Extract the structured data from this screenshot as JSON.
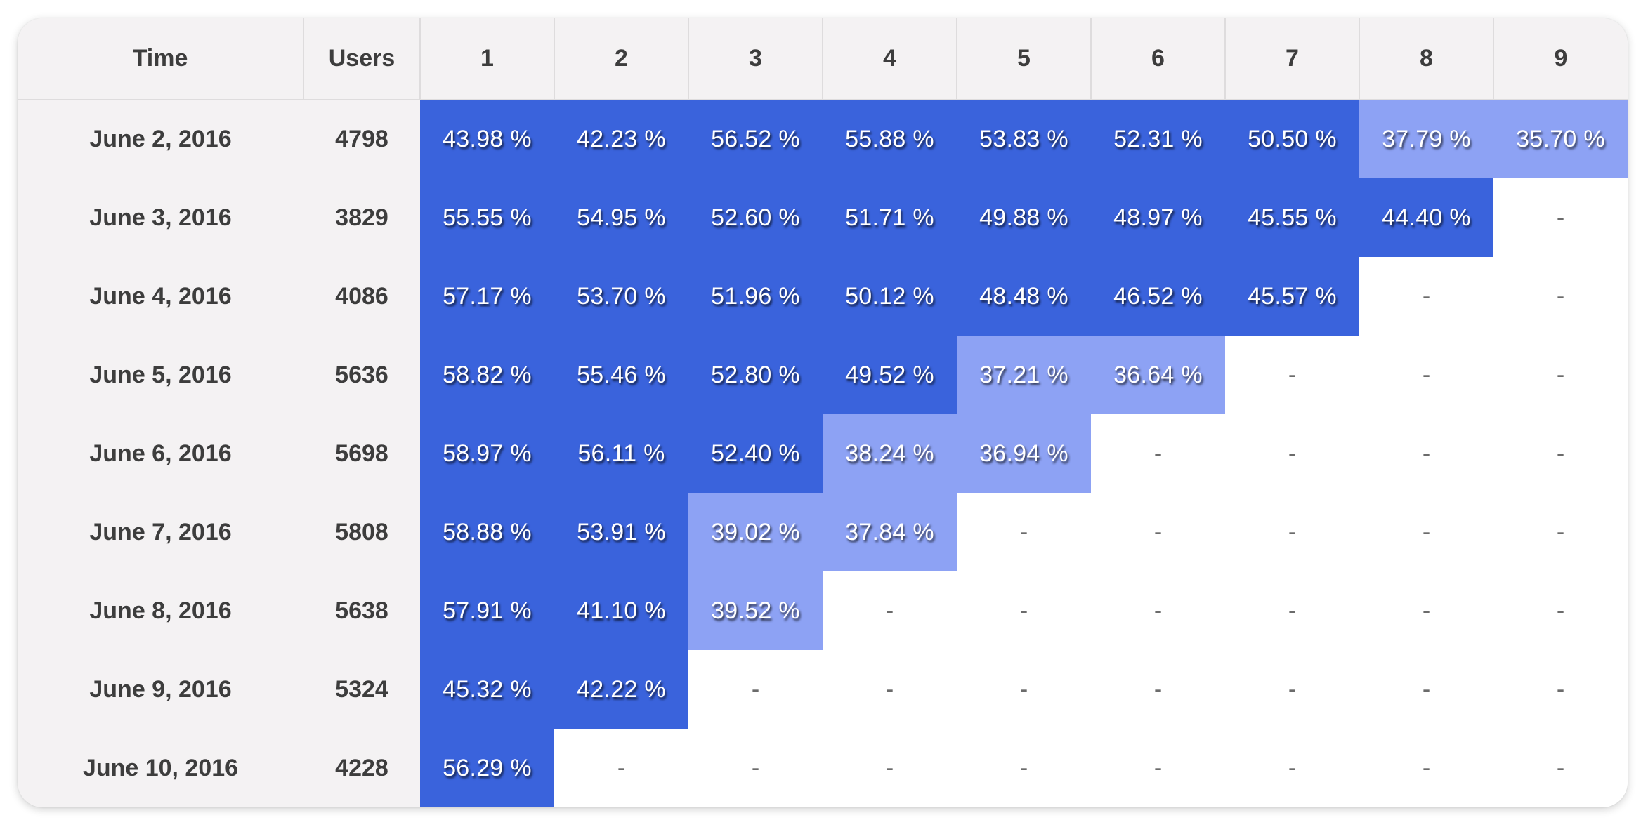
{
  "table": {
    "headers": {
      "time": "Time",
      "users": "Users",
      "periods": [
        "1",
        "2",
        "3",
        "4",
        "5",
        "6",
        "7",
        "8",
        "9"
      ]
    },
    "colors": {
      "high": "#3a63dc",
      "low": "#8da2f4",
      "header_bg": "#f4f2f3"
    },
    "empty_value": "-",
    "rows": [
      {
        "time": "June 2, 2016",
        "users": "4798",
        "values": [
          "43.98 %",
          "42.23 %",
          "56.52 %",
          "55.88 %",
          "53.83 %",
          "52.31 %",
          "50.50 %",
          "37.79 %",
          "35.70 %"
        ],
        "levels": [
          "high",
          "high",
          "high",
          "high",
          "high",
          "high",
          "high",
          "low",
          "low"
        ]
      },
      {
        "time": "June 3, 2016",
        "users": "3829",
        "values": [
          "55.55 %",
          "54.95 %",
          "52.60 %",
          "51.71 %",
          "49.88 %",
          "48.97 %",
          "45.55 %",
          "44.40 %"
        ],
        "levels": [
          "high",
          "high",
          "high",
          "high",
          "high",
          "high",
          "high",
          "high"
        ]
      },
      {
        "time": "June 4, 2016",
        "users": "4086",
        "values": [
          "57.17 %",
          "53.70 %",
          "51.96 %",
          "50.12 %",
          "48.48 %",
          "46.52 %",
          "45.57 %"
        ],
        "levels": [
          "high",
          "high",
          "high",
          "high",
          "high",
          "high",
          "high"
        ]
      },
      {
        "time": "June 5, 2016",
        "users": "5636",
        "values": [
          "58.82 %",
          "55.46 %",
          "52.80 %",
          "49.52 %",
          "37.21 %",
          "36.64 %"
        ],
        "levels": [
          "high",
          "high",
          "high",
          "high",
          "low",
          "low"
        ]
      },
      {
        "time": "June 6, 2016",
        "users": "5698",
        "values": [
          "58.97 %",
          "56.11 %",
          "52.40 %",
          "38.24 %",
          "36.94 %"
        ],
        "levels": [
          "high",
          "high",
          "high",
          "low",
          "low"
        ]
      },
      {
        "time": "June 7, 2016",
        "users": "5808",
        "values": [
          "58.88 %",
          "53.91 %",
          "39.02 %",
          "37.84 %"
        ],
        "levels": [
          "high",
          "high",
          "low",
          "low"
        ]
      },
      {
        "time": "June 8, 2016",
        "users": "5638",
        "values": [
          "57.91 %",
          "41.10 %",
          "39.52 %"
        ],
        "levels": [
          "high",
          "high",
          "low"
        ]
      },
      {
        "time": "June 9, 2016",
        "users": "5324",
        "values": [
          "45.32 %",
          "42.22 %"
        ],
        "levels": [
          "high",
          "high"
        ]
      },
      {
        "time": "June 10, 2016",
        "users": "4228",
        "values": [
          "56.29 %"
        ],
        "levels": [
          "high"
        ]
      }
    ]
  }
}
